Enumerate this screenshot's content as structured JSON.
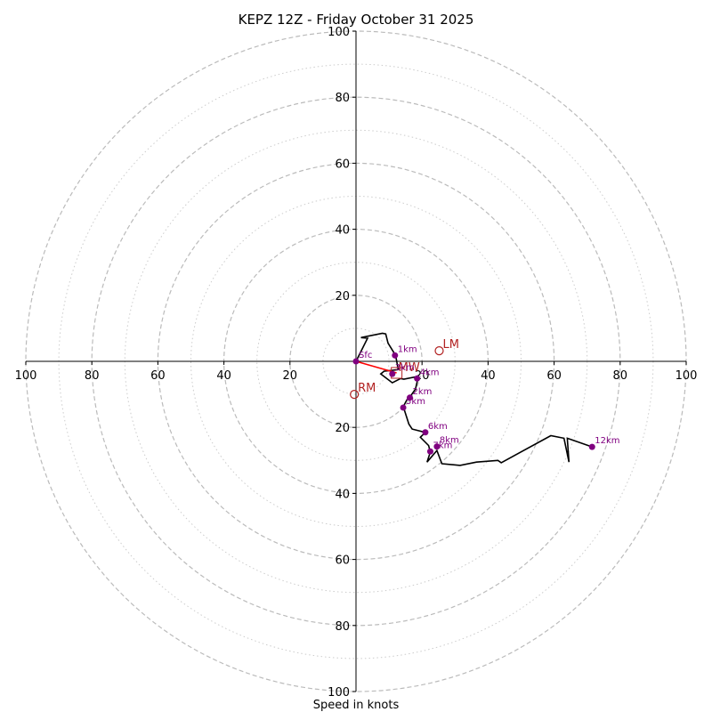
{
  "chart_data": {
    "type": "line",
    "subtype": "hodograph",
    "title": "KEPZ 12Z - Friday October 31 2025",
    "xlabel": "Speed in knots",
    "ylabel": "",
    "range": [
      -100,
      100
    ],
    "rings_major": [
      20,
      40,
      60,
      80,
      100
    ],
    "rings_minor": [
      10,
      30,
      50,
      70,
      90
    ],
    "x_tick_labels": [
      "100",
      "80",
      "60",
      "40",
      "20",
      "20",
      "40",
      "60",
      "80",
      "100"
    ],
    "x_tick_values": [
      -100,
      -80,
      -60,
      -40,
      -20,
      20,
      40,
      60,
      80,
      100
    ],
    "y_tick_labels": [
      "100",
      "80",
      "60",
      "40",
      "20",
      "20",
      "40",
      "60",
      "80",
      "100"
    ],
    "y_tick_values": [
      100,
      80,
      60,
      40,
      20,
      -20,
      -40,
      -60,
      -80,
      -100
    ],
    "grid": true,
    "colors": {
      "trace": "#000000",
      "height_markers": "#800080",
      "motion_markers": "#b22222",
      "mean_wind_vector": "#ff0000",
      "grid": "#bbbbbb"
    },
    "trace": [
      [
        0,
        0
      ],
      [
        3.5,
        7
      ],
      [
        1.5,
        7.2
      ],
      [
        8,
        8.5
      ],
      [
        9,
        8.3
      ],
      [
        9.7,
        5.5
      ],
      [
        12,
        1.8
      ],
      [
        12.8,
        -2.5
      ],
      [
        8.5,
        -3
      ],
      [
        7.5,
        -3.8
      ],
      [
        11,
        -6.5
      ],
      [
        13.5,
        -5.2
      ],
      [
        14.5,
        -5.4
      ],
      [
        18.5,
        -4.6
      ],
      [
        18.8,
        -4.4
      ],
      [
        18.5,
        -6.3
      ],
      [
        18,
        -8.4
      ],
      [
        16.3,
        -10.8
      ],
      [
        15.5,
        -11.5
      ],
      [
        14.3,
        -13.7
      ],
      [
        16,
        -19
      ],
      [
        17,
        -20.5
      ],
      [
        21,
        -21.5
      ],
      [
        19.5,
        -23
      ],
      [
        22,
        -25.5
      ],
      [
        22.5,
        -27.5
      ],
      [
        21.5,
        -30.5
      ],
      [
        24.5,
        -27
      ],
      [
        26,
        -31
      ],
      [
        31.5,
        -31.5
      ],
      [
        36.5,
        -30.5
      ],
      [
        43,
        -30
      ],
      [
        44,
        -30.7
      ],
      [
        59,
        -22.5
      ],
      [
        63,
        -23.3
      ],
      [
        64.5,
        -30.5
      ],
      [
        64,
        -23.3
      ],
      [
        66,
        -24
      ],
      [
        71.5,
        -25.9
      ]
    ],
    "height_points": [
      {
        "label": "Sfc",
        "u": 0,
        "v": 0
      },
      {
        "label": "1km",
        "u": 11.8,
        "v": 1.8
      },
      {
        "label": "3km",
        "u": 11,
        "v": -3.8
      },
      {
        "label": "4km",
        "u": 18.5,
        "v": -5.2
      },
      {
        "label": "2km",
        "u": 16.3,
        "v": -11
      },
      {
        "label": "5km",
        "u": 14.3,
        "v": -14
      },
      {
        "label": "6km",
        "u": 21,
        "v": -21.5
      },
      {
        "label": "7km",
        "u": 22.5,
        "v": -27.3
      },
      {
        "label": "8km",
        "u": 24.5,
        "v": -25.8
      },
      {
        "label": "12km",
        "u": 71.5,
        "v": -25.9
      }
    ],
    "storm_motion": [
      {
        "label": "LM",
        "u": 25.2,
        "v": 3.2
      },
      {
        "label": "RM",
        "u": -0.5,
        "v": -10
      }
    ],
    "mean_wind": {
      "label": "MW",
      "u": 12.3,
      "v": -3.5
    },
    "axis_labels_hidden_note": ""
  }
}
